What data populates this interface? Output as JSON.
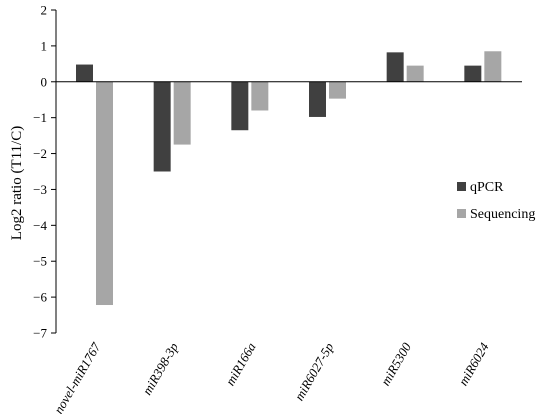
{
  "chart_data": {
    "type": "bar",
    "title": "",
    "xlabel": "",
    "ylabel": "Log2 ratio (T11/C)",
    "ylim": [
      -7,
      2
    ],
    "yticks": [
      2,
      1,
      0,
      -1,
      -2,
      -3,
      -4,
      -5,
      -6,
      -7
    ],
    "ytick_labels": [
      "2",
      "1",
      "0",
      "−1",
      "−2",
      "−3",
      "−4",
      "−5",
      "−6",
      "−7"
    ],
    "categories": [
      "novel-miR1767",
      "miR398-3p",
      "miR166a",
      "miR6027-5p",
      "miR5300",
      "miR6024"
    ],
    "series": [
      {
        "name": "qPCR",
        "color": "#404040",
        "values": [
          0.48,
          -2.5,
          -1.35,
          -0.98,
          0.82,
          0.45
        ]
      },
      {
        "name": "Sequencing",
        "color": "#a6a6a6",
        "values": [
          -6.22,
          -1.75,
          -0.8,
          -0.47,
          0.45,
          0.85
        ]
      }
    ],
    "grid": false,
    "legend_position": "right"
  }
}
